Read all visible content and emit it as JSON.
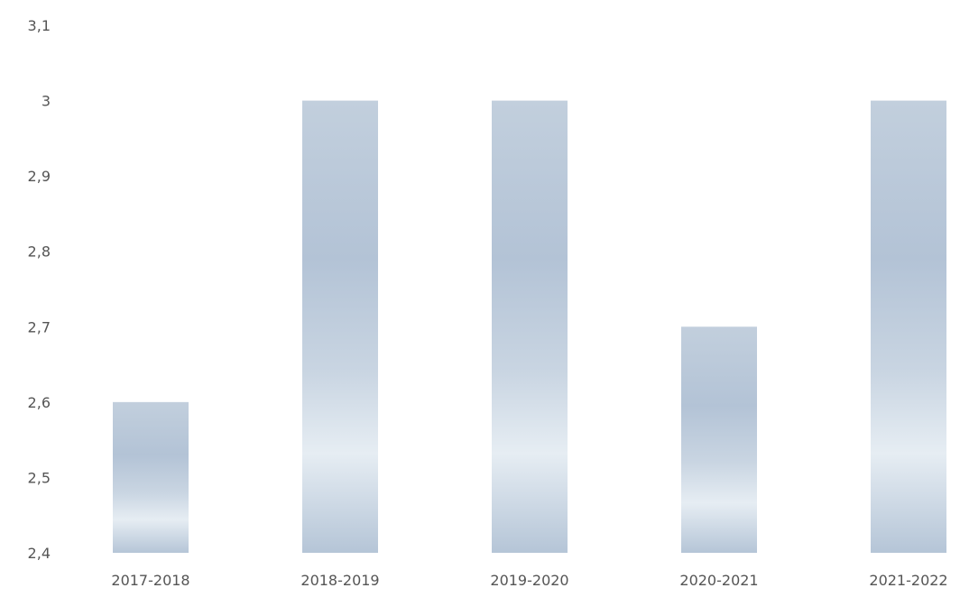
{
  "chart_data": {
    "type": "bar",
    "title": "",
    "xlabel": "",
    "ylabel": "",
    "categories": [
      "2017-2018",
      "2018-2019",
      "2019-2020",
      "2020-2021",
      "2021-2022"
    ],
    "values": [
      2.6,
      3.0,
      3.0,
      2.7,
      3.0
    ],
    "ylim": [
      2.4,
      3.1
    ],
    "y_ticks": [
      "2,4",
      "2,5",
      "2,6",
      "2,7",
      "2,8",
      "2,9",
      "3",
      "3,1"
    ],
    "y_tick_values": [
      2.4,
      2.5,
      2.6,
      2.7,
      2.8,
      2.9,
      3.0,
      3.1
    ],
    "grid": false,
    "legend": "none",
    "bar_color": "#b9c8d8",
    "tick_label_color": "#555555"
  }
}
